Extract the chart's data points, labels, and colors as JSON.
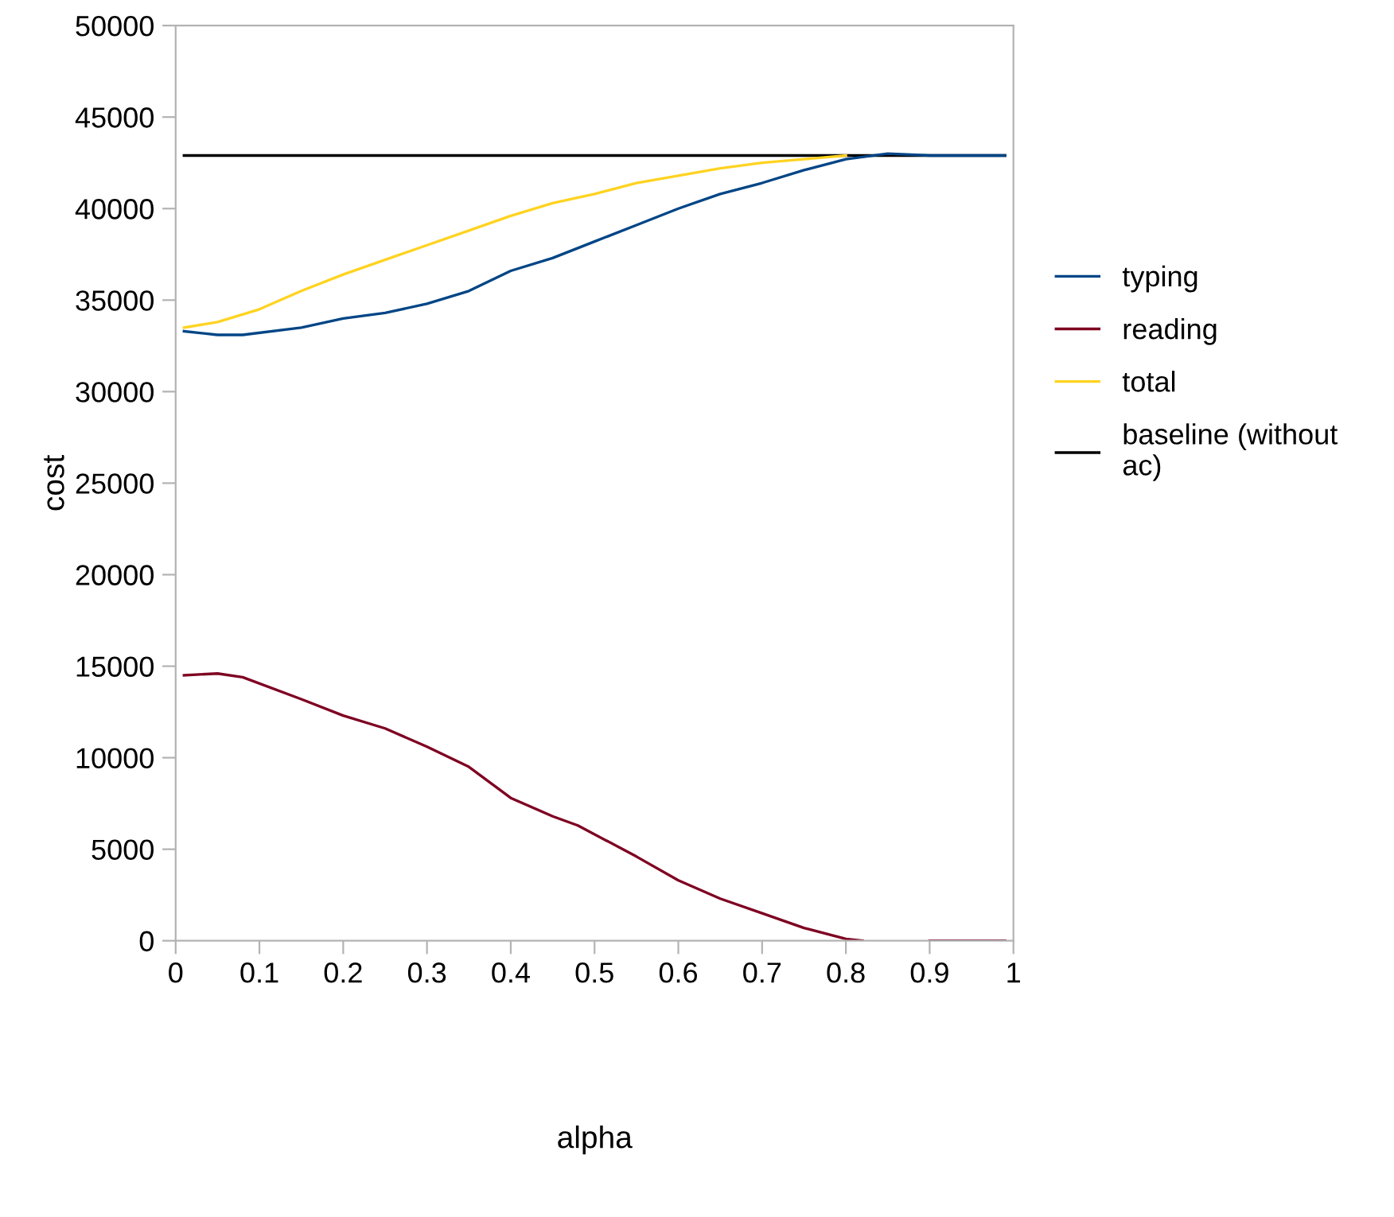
{
  "chart_data": {
    "type": "line",
    "xlabel": "alpha",
    "ylabel": "cost",
    "xlim": [
      0,
      1
    ],
    "ylim": [
      0,
      50000
    ],
    "xticks": [
      0,
      0.1,
      0.2,
      0.3,
      0.4,
      0.5,
      0.6,
      0.7,
      0.8,
      0.9,
      1
    ],
    "yticks": [
      0,
      5000,
      10000,
      15000,
      20000,
      25000,
      30000,
      35000,
      40000,
      45000,
      50000
    ],
    "grid": false,
    "legend": "right",
    "marker": "none",
    "line_style": "solid",
    "series": [
      {
        "name": "typing",
        "color": "#004586",
        "x": [
          0.01,
          0.05,
          0.08,
          0.15,
          0.2,
          0.25,
          0.3,
          0.35,
          0.4,
          0.45,
          0.5,
          0.55,
          0.6,
          0.65,
          0.7,
          0.75,
          0.8,
          0.85,
          0.9,
          0.95,
          0.99
        ],
        "values": [
          33300,
          33100,
          33100,
          33500,
          34000,
          34300,
          34800,
          35500,
          36600,
          37300,
          38200,
          39100,
          40000,
          40800,
          41400,
          42100,
          42700,
          43000,
          42900,
          42900,
          42900
        ]
      },
      {
        "name": "reading",
        "color": "#7e0021",
        "x": [
          0.01,
          0.05,
          0.08,
          0.15,
          0.2,
          0.25,
          0.3,
          0.35,
          0.4,
          0.45,
          0.48,
          0.55,
          0.6,
          0.65,
          0.7,
          0.75,
          0.8,
          0.82,
          0.86,
          0.9,
          0.95,
          0.99
        ],
        "values": [
          14500,
          14600,
          14400,
          13200,
          12300,
          11600,
          10600,
          9500,
          7800,
          6800,
          6300,
          4600,
          3300,
          2300,
          1500,
          700,
          100,
          0,
          null,
          0,
          0,
          0
        ]
      },
      {
        "name": "total",
        "color": "#ffd320",
        "x": [
          0.01,
          0.05,
          0.1,
          0.15,
          0.2,
          0.25,
          0.3,
          0.35,
          0.4,
          0.45,
          0.5,
          0.55,
          0.6,
          0.65,
          0.7,
          0.75,
          0.8
        ],
        "values": [
          33500,
          33800,
          34500,
          35500,
          36400,
          37200,
          38000,
          38800,
          39600,
          40300,
          40800,
          41400,
          41800,
          42200,
          42500,
          42700,
          42900
        ]
      },
      {
        "name": "baseline (without\nac)",
        "color": "#000000",
        "x": [
          0.01,
          0.99
        ],
        "values": [
          42900,
          42900
        ]
      }
    ]
  }
}
